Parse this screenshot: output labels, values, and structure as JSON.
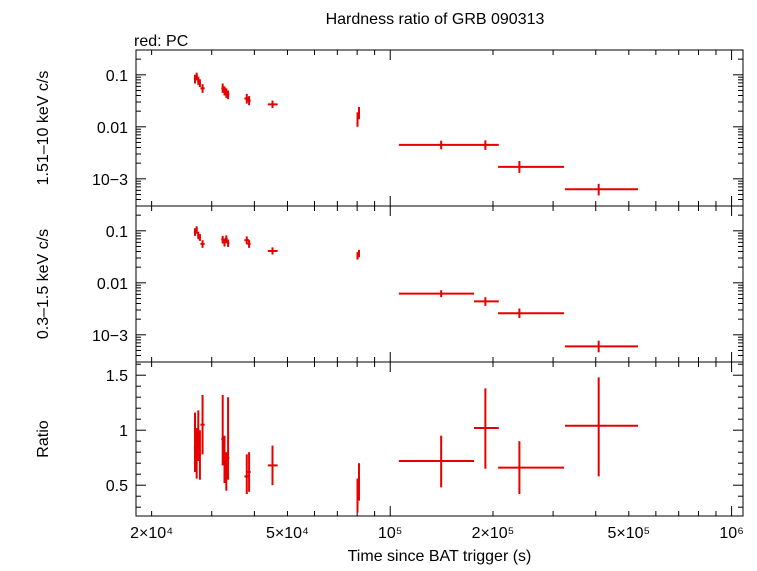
{
  "title": "Hardness ratio of GRB 090313",
  "subtitle": "red: PC",
  "colors": {
    "series": "#e60000",
    "axis": "#000000",
    "background": "#ffffff"
  },
  "chart_data": [
    {
      "type": "scatter",
      "panel": "hard",
      "ylabel": "1.51–10 keV c/s",
      "yscale": "log",
      "ylim": [
        0.0003,
        0.3
      ],
      "yticks": [
        {
          "v": 0.1,
          "label": "0.1"
        },
        {
          "v": 0.01,
          "label": "0.01"
        },
        {
          "v": 0.001,
          "label": "10−3"
        }
      ],
      "xscale": "log",
      "xlim": [
        18000,
        1080000
      ],
      "points": [
        {
          "x": 26800,
          "y": 0.085,
          "xlo": 26600,
          "xhi": 27000,
          "ylo": 0.068,
          "yhi": 0.1
        },
        {
          "x": 27100,
          "y": 0.095,
          "xlo": 26900,
          "xhi": 27300,
          "ylo": 0.078,
          "yhi": 0.11
        },
        {
          "x": 27400,
          "y": 0.078,
          "xlo": 27200,
          "xhi": 27600,
          "ylo": 0.064,
          "yhi": 0.092
        },
        {
          "x": 27700,
          "y": 0.07,
          "xlo": 27500,
          "xhi": 27900,
          "ylo": 0.058,
          "yhi": 0.082
        },
        {
          "x": 28200,
          "y": 0.055,
          "xlo": 27800,
          "xhi": 28600,
          "ylo": 0.045,
          "yhi": 0.066
        },
        {
          "x": 32300,
          "y": 0.055,
          "xlo": 32000,
          "xhi": 32600,
          "ylo": 0.045,
          "yhi": 0.068
        },
        {
          "x": 32700,
          "y": 0.05,
          "xlo": 32400,
          "xhi": 33000,
          "ylo": 0.04,
          "yhi": 0.06
        },
        {
          "x": 33100,
          "y": 0.045,
          "xlo": 32800,
          "xhi": 33400,
          "ylo": 0.036,
          "yhi": 0.055
        },
        {
          "x": 33500,
          "y": 0.042,
          "xlo": 33200,
          "xhi": 33800,
          "ylo": 0.034,
          "yhi": 0.05
        },
        {
          "x": 38000,
          "y": 0.035,
          "xlo": 37400,
          "xhi": 38600,
          "ylo": 0.028,
          "yhi": 0.043
        },
        {
          "x": 38600,
          "y": 0.032,
          "xlo": 38200,
          "xhi": 39000,
          "ylo": 0.026,
          "yhi": 0.039
        },
        {
          "x": 45200,
          "y": 0.027,
          "xlo": 43800,
          "xhi": 46800,
          "ylo": 0.023,
          "yhi": 0.032
        },
        {
          "x": 80200,
          "y": 0.014,
          "xlo": 79700,
          "xhi": 80700,
          "ylo": 0.01,
          "yhi": 0.019
        },
        {
          "x": 81000,
          "y": 0.019,
          "xlo": 80500,
          "xhi": 81500,
          "ylo": 0.014,
          "yhi": 0.024
        },
        {
          "x": 141000,
          "y": 0.0045,
          "xlo": 106000,
          "xhi": 176000,
          "ylo": 0.0037,
          "yhi": 0.0054
        },
        {
          "x": 190000,
          "y": 0.0045,
          "xlo": 176000,
          "xhi": 208000,
          "ylo": 0.0036,
          "yhi": 0.0055
        },
        {
          "x": 239000,
          "y": 0.0017,
          "xlo": 207000,
          "xhi": 323000,
          "ylo": 0.0013,
          "yhi": 0.0022
        },
        {
          "x": 408000,
          "y": 0.00063,
          "xlo": 325000,
          "xhi": 532000,
          "ylo": 0.00048,
          "yhi": 0.0008
        }
      ]
    },
    {
      "type": "scatter",
      "panel": "soft",
      "ylabel": "0.3–1.5 keV c/s",
      "yscale": "log",
      "ylim": [
        0.0003,
        0.3
      ],
      "yticks": [
        {
          "v": 0.1,
          "label": "0.1"
        },
        {
          "v": 0.01,
          "label": "0.01"
        },
        {
          "v": 0.001,
          "label": "10−3"
        }
      ],
      "xscale": "log",
      "xlim": [
        18000,
        1080000
      ],
      "points": [
        {
          "x": 26800,
          "y": 0.095,
          "xlo": 26600,
          "xhi": 27000,
          "ylo": 0.08,
          "yhi": 0.112
        },
        {
          "x": 27100,
          "y": 0.105,
          "xlo": 26900,
          "xhi": 27300,
          "ylo": 0.088,
          "yhi": 0.122
        },
        {
          "x": 27400,
          "y": 0.082,
          "xlo": 27200,
          "xhi": 27600,
          "ylo": 0.069,
          "yhi": 0.096
        },
        {
          "x": 27700,
          "y": 0.075,
          "xlo": 27500,
          "xhi": 27900,
          "ylo": 0.064,
          "yhi": 0.087
        },
        {
          "x": 28200,
          "y": 0.056,
          "xlo": 27800,
          "xhi": 28600,
          "ylo": 0.047,
          "yhi": 0.066
        },
        {
          "x": 32300,
          "y": 0.068,
          "xlo": 32000,
          "xhi": 32600,
          "ylo": 0.057,
          "yhi": 0.08
        },
        {
          "x": 32700,
          "y": 0.06,
          "xlo": 32400,
          "xhi": 33000,
          "ylo": 0.05,
          "yhi": 0.071
        },
        {
          "x": 33100,
          "y": 0.07,
          "xlo": 32800,
          "xhi": 33400,
          "ylo": 0.058,
          "yhi": 0.082
        },
        {
          "x": 33500,
          "y": 0.058,
          "xlo": 33200,
          "xhi": 33800,
          "ylo": 0.049,
          "yhi": 0.068
        },
        {
          "x": 38000,
          "y": 0.066,
          "xlo": 37400,
          "xhi": 38600,
          "ylo": 0.055,
          "yhi": 0.078
        },
        {
          "x": 38600,
          "y": 0.056,
          "xlo": 38200,
          "xhi": 39000,
          "ylo": 0.047,
          "yhi": 0.066
        },
        {
          "x": 45200,
          "y": 0.041,
          "xlo": 43800,
          "xhi": 46800,
          "ylo": 0.035,
          "yhi": 0.048
        },
        {
          "x": 80200,
          "y": 0.033,
          "xlo": 79700,
          "xhi": 80700,
          "ylo": 0.028,
          "yhi": 0.039
        },
        {
          "x": 81000,
          "y": 0.037,
          "xlo": 80500,
          "xhi": 81500,
          "ylo": 0.031,
          "yhi": 0.043
        },
        {
          "x": 141000,
          "y": 0.0062,
          "xlo": 106000,
          "xhi": 176000,
          "ylo": 0.0053,
          "yhi": 0.0072
        },
        {
          "x": 190000,
          "y": 0.0044,
          "xlo": 176000,
          "xhi": 208000,
          "ylo": 0.0036,
          "yhi": 0.0053
        },
        {
          "x": 239000,
          "y": 0.0026,
          "xlo": 207000,
          "xhi": 323000,
          "ylo": 0.0021,
          "yhi": 0.0032
        },
        {
          "x": 408000,
          "y": 0.0006,
          "xlo": 325000,
          "xhi": 532000,
          "ylo": 0.00046,
          "yhi": 0.00077
        }
      ]
    },
    {
      "type": "scatter",
      "panel": "ratio",
      "ylabel": "Ratio",
      "xlabel": "Time since BAT trigger (s)",
      "yscale": "linear",
      "ylim": [
        0.22,
        1.62
      ],
      "yticks": [
        {
          "v": 0.5,
          "label": "0.5"
        },
        {
          "v": 1.0,
          "label": "1"
        },
        {
          "v": 1.5,
          "label": "1.5"
        }
      ],
      "xscale": "log",
      "xlim": [
        18000,
        1080000
      ],
      "xticks": [
        {
          "v": 20000,
          "label": "2×10⁴"
        },
        {
          "v": 50000,
          "label": "5×10⁴"
        },
        {
          "v": 100000,
          "label": "10⁵"
        },
        {
          "v": 200000,
          "label": "2×10⁵"
        },
        {
          "v": 500000,
          "label": "5×10⁵"
        },
        {
          "v": 1000000,
          "label": "10⁶"
        }
      ],
      "points": [
        {
          "x": 26800,
          "y": 0.85,
          "xlo": 26600,
          "xhi": 27000,
          "ylo": 0.62,
          "yhi": 1.16
        },
        {
          "x": 27100,
          "y": 0.75,
          "xlo": 26900,
          "xhi": 27300,
          "ylo": 0.56,
          "yhi": 1.02
        },
        {
          "x": 27400,
          "y": 0.95,
          "xlo": 27200,
          "xhi": 27600,
          "ylo": 0.72,
          "yhi": 1.18
        },
        {
          "x": 27700,
          "y": 0.78,
          "xlo": 27500,
          "xhi": 27900,
          "ylo": 0.55,
          "yhi": 1.0
        },
        {
          "x": 28200,
          "y": 1.05,
          "xlo": 27800,
          "xhi": 28600,
          "ylo": 0.78,
          "yhi": 1.32
        },
        {
          "x": 32300,
          "y": 0.92,
          "xlo": 32000,
          "xhi": 32600,
          "ylo": 0.68,
          "yhi": 1.32
        },
        {
          "x": 32700,
          "y": 0.7,
          "xlo": 32400,
          "xhi": 33000,
          "ylo": 0.52,
          "yhi": 0.95
        },
        {
          "x": 33100,
          "y": 0.6,
          "xlo": 32800,
          "xhi": 33400,
          "ylo": 0.45,
          "yhi": 0.8
        },
        {
          "x": 33500,
          "y": 0.75,
          "xlo": 33200,
          "xhi": 33800,
          "ylo": 0.55,
          "yhi": 1.3
        },
        {
          "x": 38000,
          "y": 0.58,
          "xlo": 37400,
          "xhi": 38600,
          "ylo": 0.42,
          "yhi": 0.78
        },
        {
          "x": 38600,
          "y": 0.62,
          "xlo": 38200,
          "xhi": 39000,
          "ylo": 0.44,
          "yhi": 0.8
        },
        {
          "x": 45200,
          "y": 0.68,
          "xlo": 43800,
          "xhi": 46800,
          "ylo": 0.5,
          "yhi": 0.86
        },
        {
          "x": 80200,
          "y": 0.4,
          "xlo": 79700,
          "xhi": 80700,
          "ylo": 0.25,
          "yhi": 0.56
        },
        {
          "x": 81000,
          "y": 0.52,
          "xlo": 80500,
          "xhi": 81500,
          "ylo": 0.36,
          "yhi": 0.7
        },
        {
          "x": 141000,
          "y": 0.72,
          "xlo": 106000,
          "xhi": 176000,
          "ylo": 0.48,
          "yhi": 0.95
        },
        {
          "x": 190000,
          "y": 1.02,
          "xlo": 176000,
          "xhi": 208000,
          "ylo": 0.65,
          "yhi": 1.38
        },
        {
          "x": 239000,
          "y": 0.66,
          "xlo": 207000,
          "xhi": 323000,
          "ylo": 0.42,
          "yhi": 0.9
        },
        {
          "x": 408000,
          "y": 1.04,
          "xlo": 325000,
          "xhi": 532000,
          "ylo": 0.58,
          "yhi": 1.48
        }
      ]
    }
  ]
}
